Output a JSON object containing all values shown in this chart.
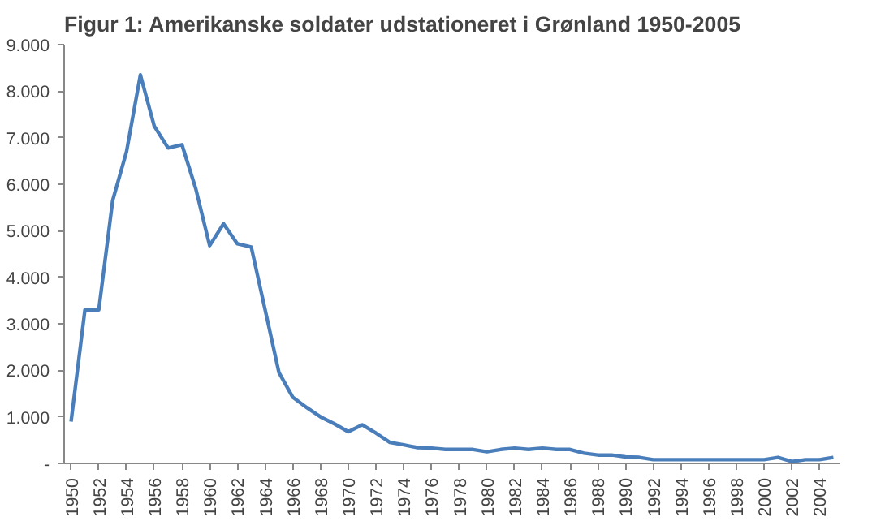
{
  "chart_data": {
    "type": "line",
    "title": "Figur 1: Amerikanske soldater udstationeret i Grønland 1950-2005",
    "categories": [
      "1950",
      null,
      "1952",
      null,
      "1954",
      null,
      "1956",
      null,
      "1958",
      null,
      "1960",
      null,
      "1962",
      null,
      "1964",
      null,
      "1966",
      null,
      "1968",
      null,
      "1970",
      null,
      "1972",
      null,
      "1974",
      null,
      "1976",
      null,
      "1978",
      null,
      "1980",
      null,
      "1982",
      null,
      "1984",
      null,
      "1986",
      null,
      "1988",
      null,
      "1990",
      null,
      "1992",
      null,
      "1994",
      null,
      "1996",
      null,
      "1998",
      null,
      "2000",
      null,
      "2002",
      null,
      "2004",
      null
    ],
    "series": [
      {
        "color": "#4a7ebb",
        "values": [
          900,
          3300,
          3300,
          5650,
          6700,
          8350,
          7250,
          6780,
          6850,
          5900,
          4680,
          5150,
          4720,
          4650,
          3300,
          1950,
          1420,
          1200,
          1000,
          850,
          680,
          830,
          650,
          450,
          400,
          340,
          330,
          300,
          300,
          300,
          250,
          300,
          330,
          300,
          330,
          300,
          300,
          220,
          180,
          180,
          140,
          130,
          80,
          80,
          80,
          80,
          80,
          80,
          80,
          80,
          80,
          130,
          40,
          80,
          80,
          130
        ]
      }
    ],
    "ylim": [
      0,
      9000
    ],
    "yticks": [
      {
        "value": 0,
        "label": "-"
      },
      {
        "value": 1000,
        "label": "1.000"
      },
      {
        "value": 2000,
        "label": "2.000"
      },
      {
        "value": 3000,
        "label": "3.000"
      },
      {
        "value": 4000,
        "label": "4.000"
      },
      {
        "value": 5000,
        "label": "5.000"
      },
      {
        "value": 6000,
        "label": "6.000"
      },
      {
        "value": 7000,
        "label": "7.000"
      },
      {
        "value": 8000,
        "label": "8.000"
      },
      {
        "value": 9000,
        "label": "9.000"
      }
    ],
    "grid": false,
    "marker": "none",
    "line_style": "solid"
  }
}
